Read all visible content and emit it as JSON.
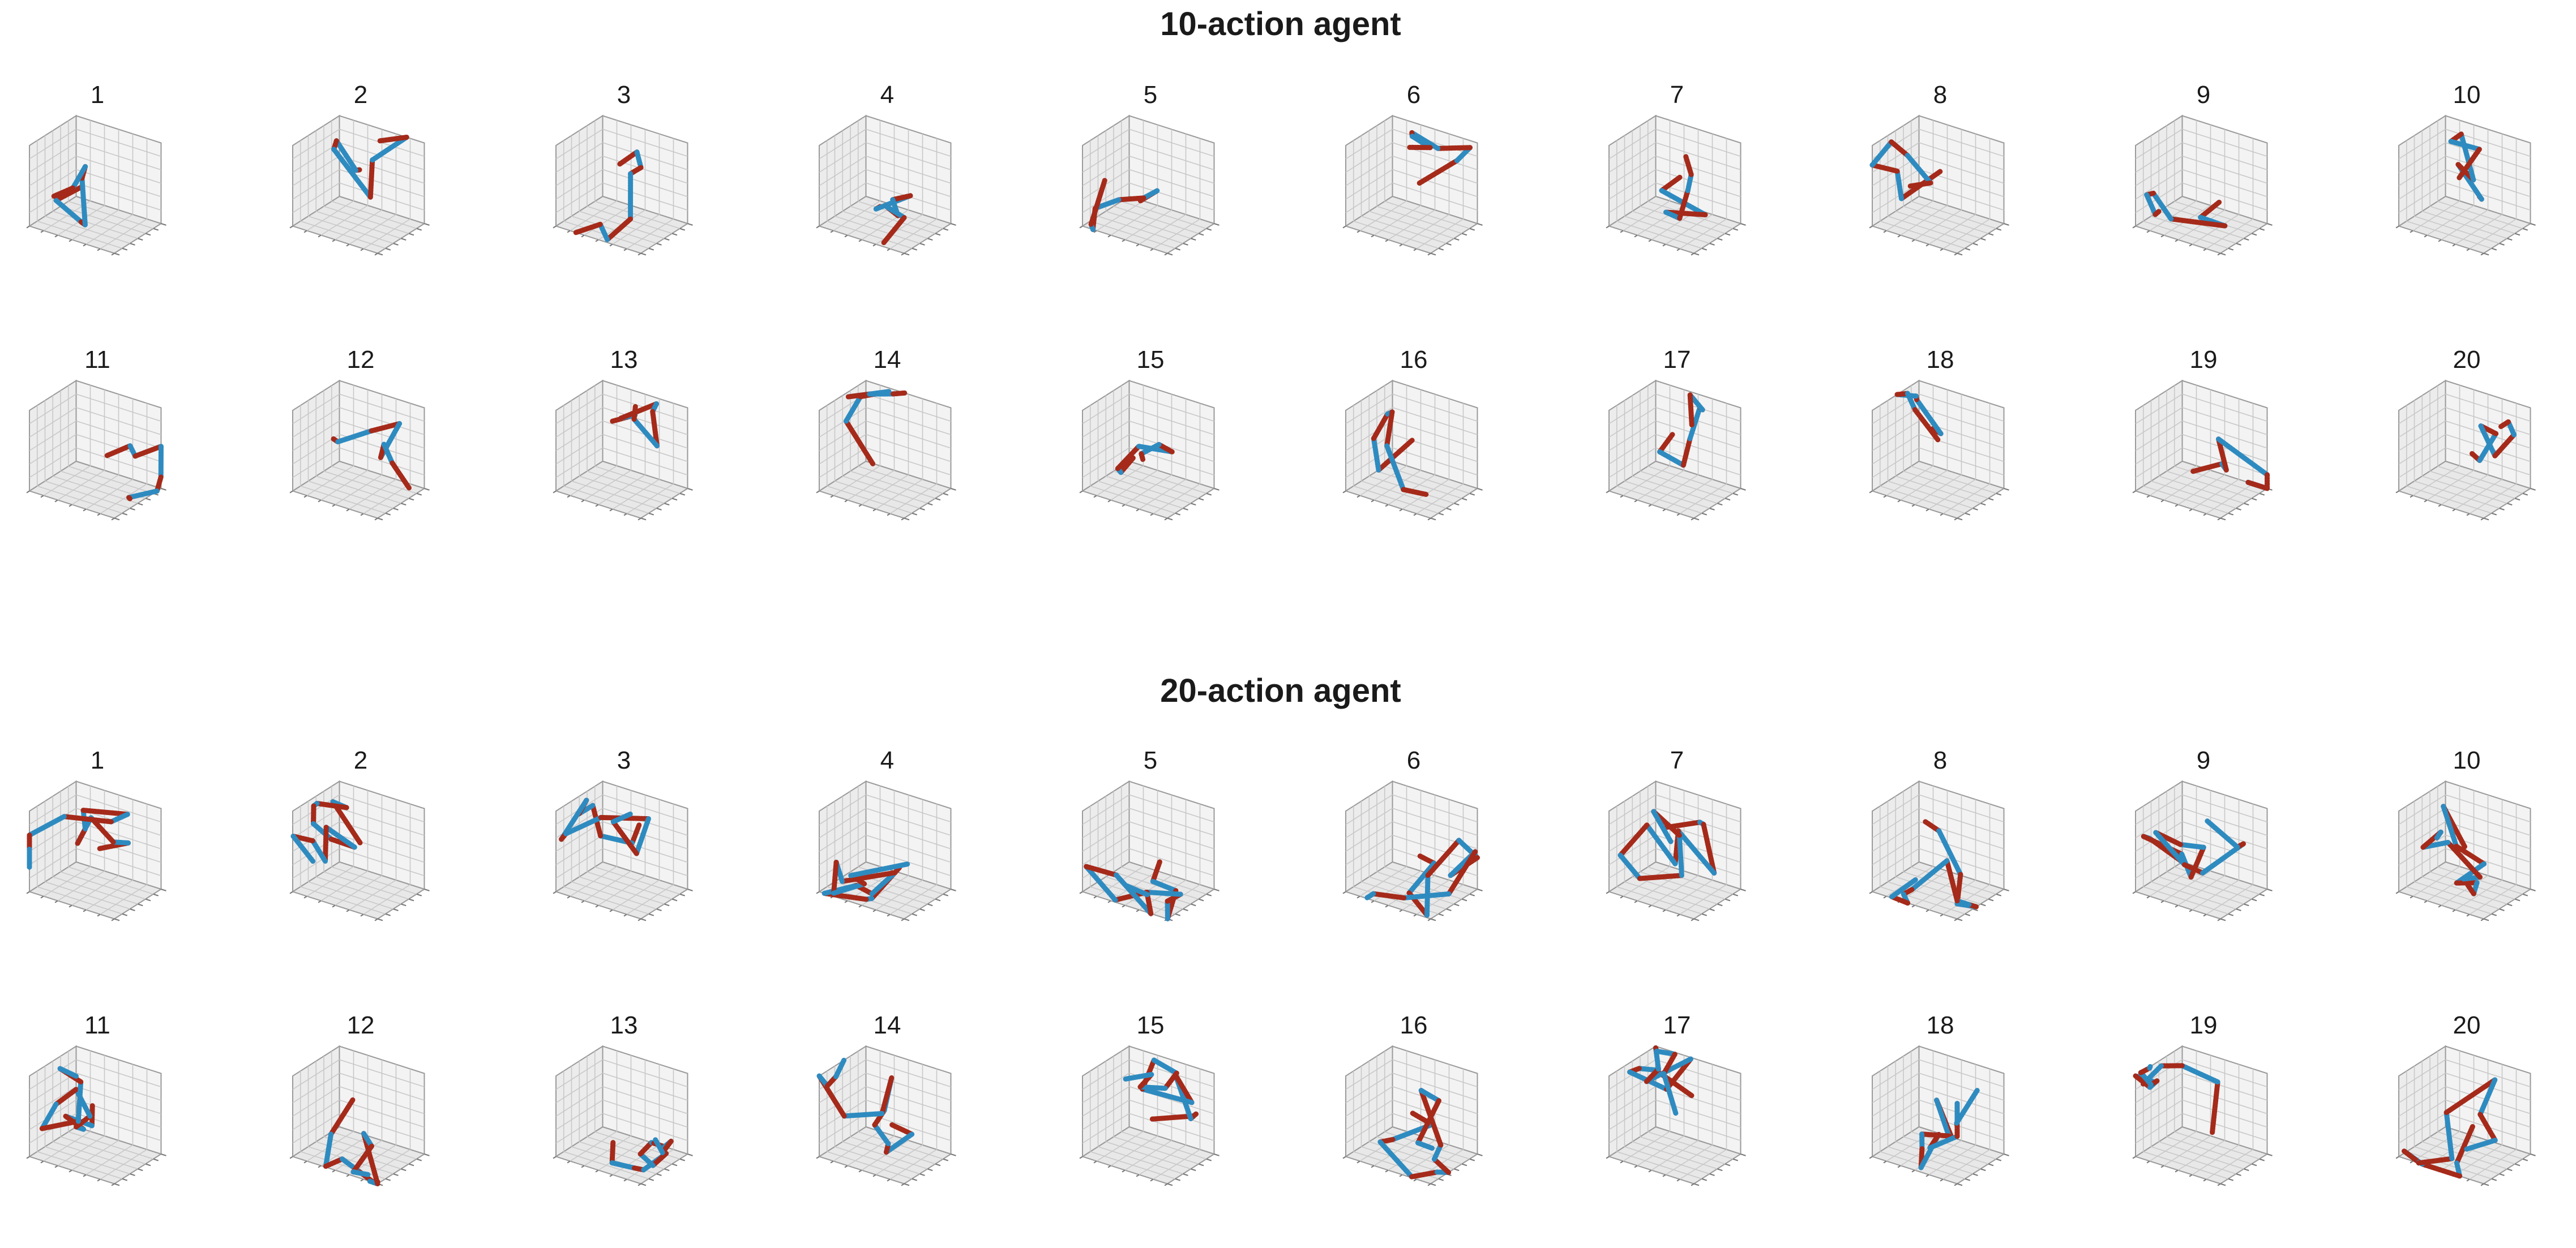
{
  "figure": {
    "sections": [
      {
        "title": "10-action agent",
        "panel_labels": [
          "1",
          "2",
          "3",
          "4",
          "5",
          "6",
          "7",
          "8",
          "9",
          "10",
          "11",
          "12",
          "13",
          "14",
          "15",
          "16",
          "17",
          "18",
          "19",
          "20"
        ]
      },
      {
        "title": "20-action agent",
        "panel_labels": [
          "1",
          "2",
          "3",
          "4",
          "5",
          "6",
          "7",
          "8",
          "9",
          "10",
          "11",
          "12",
          "13",
          "14",
          "15",
          "16",
          "17",
          "18",
          "19",
          "20"
        ]
      }
    ]
  },
  "chart_data": {
    "type": "line",
    "subtype": "3d-trajectory small multiples",
    "grid": true,
    "tick_labels_shown": false,
    "colors": {
      "series_a": "#a52a1a",
      "series_b": "#2e8bc0",
      "pane": "#f0f0f0",
      "grid": "#c8c8c8"
    },
    "panels_per_section": 20,
    "layout": "2 rows x 10 columns per section"
  }
}
